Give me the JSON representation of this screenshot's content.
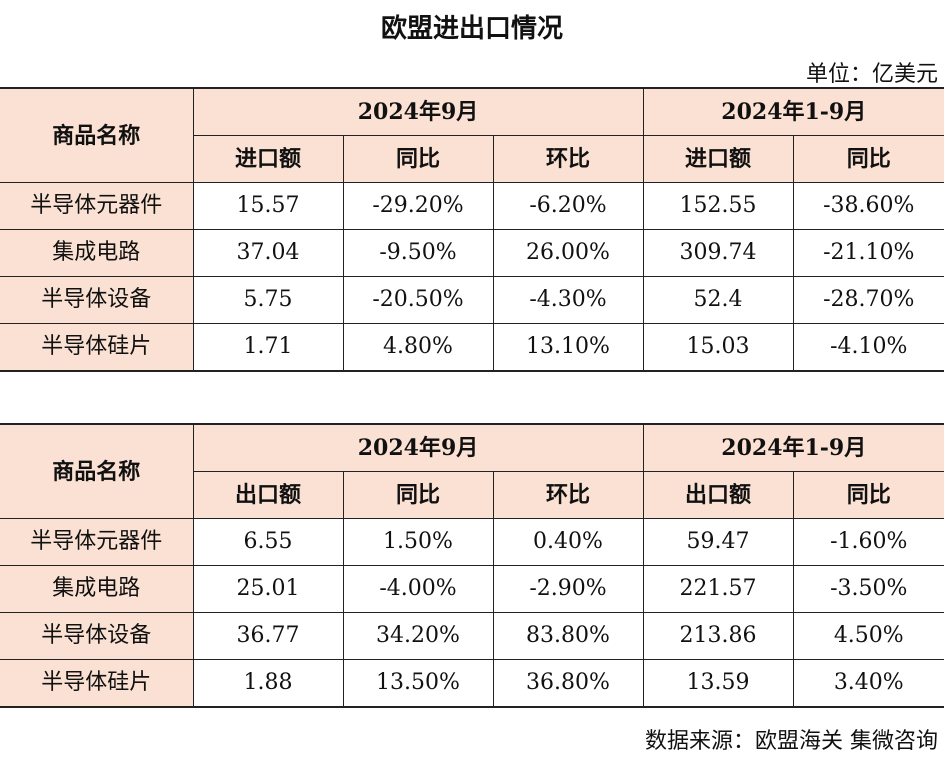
{
  "title": "欧盟进出口情况",
  "unit": "单位：亿美元",
  "source": "数据来源：欧盟海关 集微咨询",
  "import_table": {
    "name_header": "商品名称",
    "period1": "2024年9月",
    "period2": "2024年1-9月",
    "col_amount": "进口额",
    "col_yoy": "同比",
    "col_mom": "环比",
    "rows": [
      {
        "name": "半导体元器件",
        "amount": "15.57",
        "yoy": "-29.20%",
        "mom": "-6.20%",
        "ytd_amount": "152.55",
        "ytd_yoy": "-38.60%"
      },
      {
        "name": "集成电路",
        "amount": "37.04",
        "yoy": "-9.50%",
        "mom": "26.00%",
        "ytd_amount": "309.74",
        "ytd_yoy": "-21.10%"
      },
      {
        "name": "半导体设备",
        "amount": "5.75",
        "yoy": "-20.50%",
        "mom": "-4.30%",
        "ytd_amount": "52.4",
        "ytd_yoy": "-28.70%"
      },
      {
        "name": "半导体硅片",
        "amount": "1.71",
        "yoy": "4.80%",
        "mom": "13.10%",
        "ytd_amount": "15.03",
        "ytd_yoy": "-4.10%"
      }
    ]
  },
  "export_table": {
    "name_header": "商品名称",
    "period1": "2024年9月",
    "period2": "2024年1-9月",
    "col_amount": "出口额",
    "col_yoy": "同比",
    "col_mom": "环比",
    "rows": [
      {
        "name": "半导体元器件",
        "amount": "6.55",
        "yoy": "1.50%",
        "mom": "0.40%",
        "ytd_amount": "59.47",
        "ytd_yoy": "-1.60%"
      },
      {
        "name": "集成电路",
        "amount": "25.01",
        "yoy": "-4.00%",
        "mom": "-2.90%",
        "ytd_amount": "221.57",
        "ytd_yoy": "-3.50%"
      },
      {
        "name": "半导体设备",
        "amount": "36.77",
        "yoy": "34.20%",
        "mom": "83.80%",
        "ytd_amount": "213.86",
        "ytd_yoy": "4.50%"
      },
      {
        "name": "半导体硅片",
        "amount": "1.88",
        "yoy": "13.50%",
        "mom": "36.80%",
        "ytd_amount": "13.59",
        "ytd_yoy": "3.40%"
      }
    ]
  }
}
